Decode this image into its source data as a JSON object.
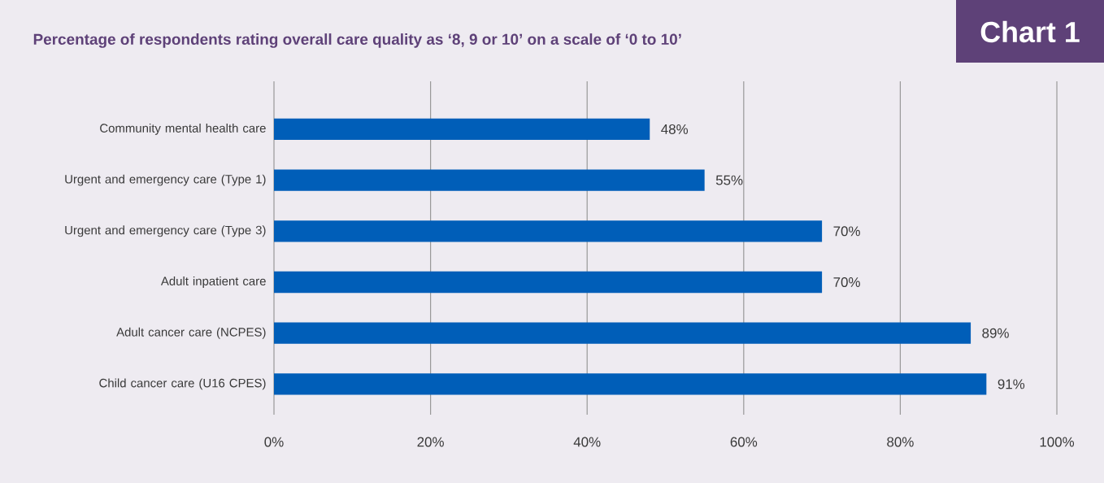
{
  "chart_data": {
    "type": "bar",
    "orientation": "horizontal",
    "title": "Percentage of respondents rating overall care quality as ‘8, 9 or 10’ on a scale of ‘0 to 10’",
    "annotations": [
      "Chart 1"
    ],
    "categories": [
      "Community mental health care",
      "Urgent and emergency care (Type 1)",
      "Urgent and emergency care (Type 3)",
      "Adult inpatient care",
      "Adult cancer care (NCPES)",
      "Child cancer care (U16 CPES)"
    ],
    "values": [
      48,
      55,
      70,
      70,
      89,
      91
    ],
    "value_labels": [
      "48%",
      "55%",
      "70%",
      "70%",
      "89%",
      "91%"
    ],
    "color": "#005eb8",
    "xlim": [
      0,
      100
    ],
    "xticks": [
      {
        "value": 0,
        "label": "0%"
      },
      {
        "value": 20,
        "label": "20%"
      },
      {
        "value": 40,
        "label": "40%"
      },
      {
        "value": 60,
        "label": "60%"
      },
      {
        "value": 80,
        "label": "80%"
      },
      {
        "value": 100,
        "label": "100%"
      }
    ],
    "grid": "x"
  }
}
